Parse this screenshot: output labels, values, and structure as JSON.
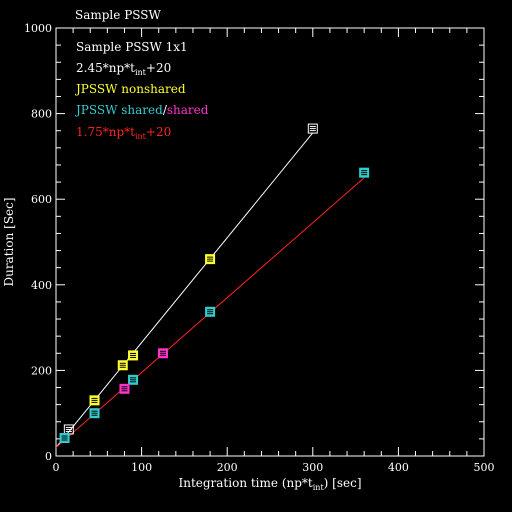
{
  "chart_data": {
    "type": "scatter",
    "title": "Sample PSSW",
    "xlabel_main": "Integration time (np*t",
    "xlabel_sub": "int",
    "xlabel_end": ") [sec]",
    "ylabel": "Duration [Sec]",
    "xlim": [
      0,
      500
    ],
    "ylim": [
      0,
      1000
    ],
    "x_ticks": [
      0,
      100,
      200,
      300,
      400,
      500
    ],
    "y_ticks": [
      0,
      200,
      400,
      600,
      800,
      1000
    ],
    "legend": [
      {
        "text": "Sample PSSW 1x1",
        "color": "#ffffff"
      },
      {
        "text_main": "2.45*np*t",
        "text_sub": "int",
        "text_end": "+20",
        "color": "#ffffff"
      },
      {
        "text": "JPSSW nonshared",
        "color": "#ffff33"
      },
      {
        "text_a": "JPSSW shared",
        "text_sep": "/",
        "text_b": "shared",
        "color_a": "#33cccc",
        "color_sep": "#ffffff",
        "color_b": "#ff33cc"
      },
      {
        "text_main": "1.75*np*t",
        "text_sub": "int",
        "text_end": "+20",
        "color": "#ff2222"
      }
    ],
    "series": [
      {
        "name": "Sample PSSW 1x1",
        "color": "#ffffff",
        "x": [
          15,
          300
        ],
        "y": [
          62,
          765
        ]
      },
      {
        "name": "JPSSW nonshared",
        "color": "#ffff33",
        "x": [
          45,
          78,
          90,
          180
        ],
        "y": [
          130,
          212,
          235,
          460
        ]
      },
      {
        "name": "JPSSW shared",
        "color": "#33cccc",
        "x": [
          10,
          45,
          90,
          180,
          360
        ],
        "y": [
          42,
          100,
          178,
          337,
          662
        ]
      },
      {
        "name": "JPSSW shared",
        "color": "#ff33cc",
        "x": [
          80,
          125
        ],
        "y": [
          157,
          240
        ]
      }
    ],
    "lines": [
      {
        "name": "2.45*np*t_int+20",
        "color": "#ffffff",
        "x": [
          0,
          300
        ],
        "y": [
          20,
          755
        ]
      },
      {
        "name": "1.75*np*t_int+20",
        "color": "#ff2222",
        "x": [
          0,
          360
        ],
        "y": [
          20,
          650
        ]
      }
    ]
  }
}
